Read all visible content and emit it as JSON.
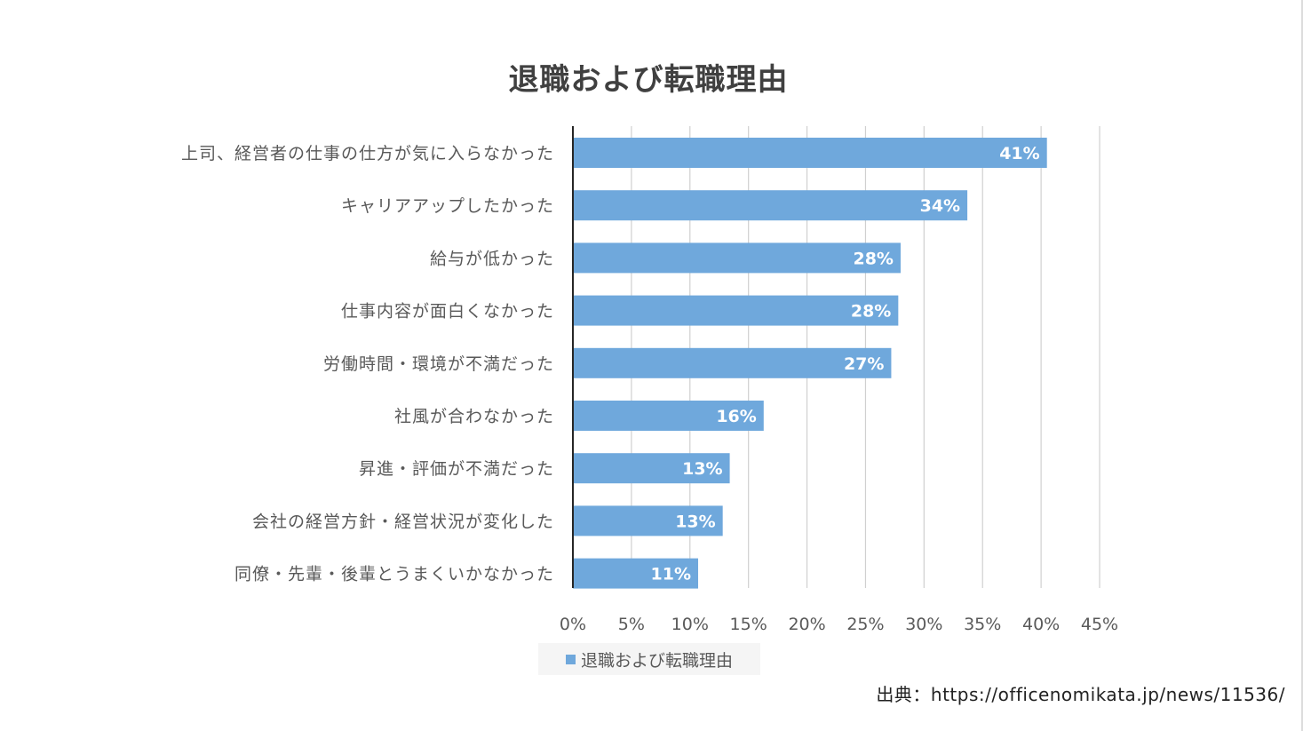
{
  "chart_data": {
    "type": "bar",
    "orientation": "horizontal",
    "title": "退職および転職理由",
    "categories": [
      "上司、経営者の仕事の仕方が気に入らなかった",
      "キャリアアップしたかった",
      "給与が低かった",
      "仕事内容が面白くなかった",
      "労働時間・環境が不満だった",
      "社風が合わなかった",
      "昇進・評価が不満だった",
      "会社の経営方針・経営状況が変化した",
      "同僚・先輩・後輩とうまくいかなかった"
    ],
    "series": [
      {
        "name": "退職および転職理由",
        "values": [
          40.5,
          33.7,
          28.0,
          27.8,
          27.2,
          16.3,
          13.4,
          12.8,
          10.7
        ],
        "labels": [
          "41%",
          "34%",
          "28%",
          "28%",
          "27%",
          "16%",
          "13%",
          "13%",
          "11%"
        ]
      }
    ],
    "xlim": [
      0,
      45
    ],
    "xticks": [
      "0%",
      "5%",
      "10%",
      "15%",
      "20%",
      "25%",
      "30%",
      "35%",
      "40%",
      "45%"
    ],
    "grid": true,
    "legend_position": "bottom",
    "bar_color": "#6fa8dc"
  },
  "source_note": "出典：https://officenomikata.jp/news/11536/"
}
